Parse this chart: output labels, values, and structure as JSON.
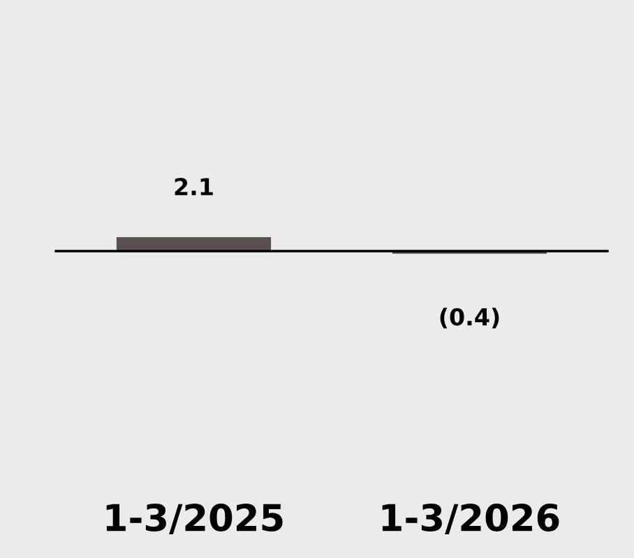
{
  "chart_data": {
    "type": "bar",
    "categories": [
      "1-3/2025",
      "1-3/2026"
    ],
    "values": [
      2.1,
      -0.4
    ],
    "color": "#594f4f",
    "value_labels": [
      "2.1",
      "(0.4)"
    ]
  }
}
